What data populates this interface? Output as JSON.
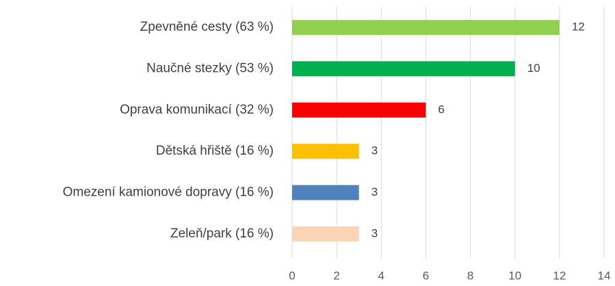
{
  "chart_data": {
    "type": "bar",
    "orientation": "horizontal",
    "categories": [
      "Zpevněné cesty (63 %)",
      "Naučné stezky (53 %)",
      "Oprava komunikací (32 %)",
      "Dětská hřiště (16 %)",
      "Omezení kamionové dopravy (16 %)",
      "Zeleň/park (16 %)"
    ],
    "values": [
      12,
      10,
      6,
      3,
      3,
      3
    ],
    "colors": [
      "#92d050",
      "#00b050",
      "#ff0000",
      "#ffc000",
      "#4f81bd",
      "#fbd5b5"
    ],
    "xlim": [
      0,
      14
    ],
    "xticks": [
      0,
      2,
      4,
      6,
      8,
      10,
      12,
      14
    ],
    "grid": true
  }
}
